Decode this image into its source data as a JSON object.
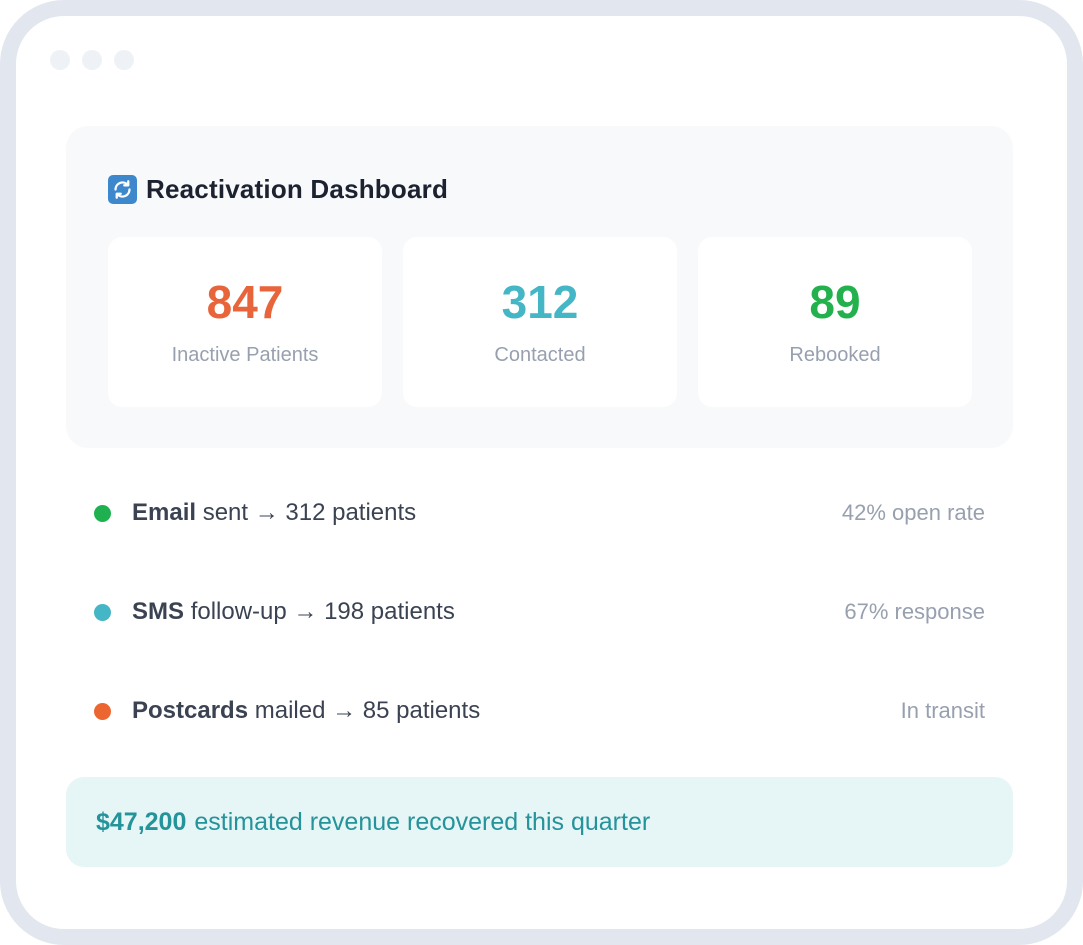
{
  "dashboard": {
    "title": "Reactivation Dashboard",
    "icon": "refresh-icon",
    "stats": [
      {
        "value": "847",
        "label": "Inactive Patients",
        "color": "#e8643a"
      },
      {
        "value": "312",
        "label": "Contacted",
        "color": "#45b6c5"
      },
      {
        "value": "89",
        "label": "Rebooked",
        "color": "#22b14c"
      }
    ]
  },
  "activities": [
    {
      "channel": "Email",
      "action": "sent → 312 patients",
      "metric": "42% open rate",
      "color": "#1fb14f"
    },
    {
      "channel": "SMS",
      "action": "follow-up → 198 patients",
      "metric": "67% response",
      "color": "#45b6c5"
    },
    {
      "channel": "Postcards",
      "action": "mailed → 85 patients",
      "metric": "In transit",
      "color": "#ec6631"
    }
  ],
  "summary": {
    "amount": "$47,200",
    "text": "estimated revenue recovered this quarter"
  }
}
